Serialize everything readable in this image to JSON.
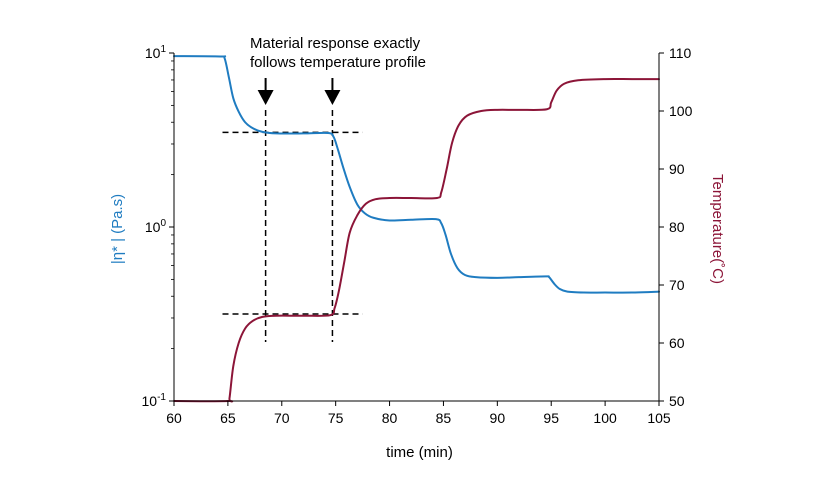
{
  "chart_data": {
    "type": "line",
    "xlabel": "time (min)",
    "xlim": [
      60,
      105
    ],
    "x_ticks": [
      "60",
      "65",
      "70",
      "75",
      "80",
      "85",
      "90",
      "95",
      "100",
      "105"
    ],
    "left_axis": {
      "label": "|η* | (Pa.s)",
      "scale": "log",
      "ylim": [
        0.1,
        10
      ],
      "ticks": [
        {
          "base": "10",
          "exp": "1",
          "value": 10
        },
        {
          "base": "10",
          "exp": "0",
          "value": 1
        },
        {
          "base": "10",
          "exp": "-1",
          "value": 0.1
        }
      ],
      "color": "#1f7cc1"
    },
    "right_axis": {
      "label": "Temperature(˚C)",
      "scale": "linear",
      "ylim": [
        50,
        110
      ],
      "ticks": [
        "50",
        "60",
        "70",
        "80",
        "90",
        "100",
        "110"
      ],
      "color": "#8c1538"
    },
    "annotation": {
      "lines": [
        "Material response exactly",
        "follows temperature profile"
      ],
      "arrow_x": [
        68.5,
        74.7
      ]
    },
    "guides": {
      "vertical_x": [
        68.5,
        74.7
      ],
      "x_range": [
        64.5,
        77.5
      ],
      "viscosity_level": 3.5,
      "temperature_level": 65
    },
    "series": [
      {
        "axis": "left",
        "color": "#1f7cc1",
        "points": [
          [
            60,
            9.6
          ],
          [
            64.3,
            9.55
          ],
          [
            64.7,
            9.3
          ],
          [
            65.1,
            7.2
          ],
          [
            65.5,
            5.5
          ],
          [
            66,
            4.6
          ],
          [
            66.6,
            4.0
          ],
          [
            67.3,
            3.7
          ],
          [
            68.2,
            3.52
          ],
          [
            69.5,
            3.45
          ],
          [
            72,
            3.45
          ],
          [
            74.3,
            3.47
          ],
          [
            74.8,
            3.3
          ],
          [
            75.2,
            2.8
          ],
          [
            75.7,
            2.2
          ],
          [
            76.3,
            1.7
          ],
          [
            77,
            1.35
          ],
          [
            77.7,
            1.2
          ],
          [
            78.5,
            1.13
          ],
          [
            80,
            1.09
          ],
          [
            82,
            1.1
          ],
          [
            84.3,
            1.11
          ],
          [
            84.8,
            1.05
          ],
          [
            85.2,
            0.9
          ],
          [
            85.7,
            0.7
          ],
          [
            86.3,
            0.58
          ],
          [
            87,
            0.53
          ],
          [
            88,
            0.515
          ],
          [
            90,
            0.51
          ],
          [
            92,
            0.515
          ],
          [
            94.5,
            0.52
          ],
          [
            94.8,
            0.515
          ],
          [
            95.3,
            0.47
          ],
          [
            95.8,
            0.44
          ],
          [
            96.5,
            0.425
          ],
          [
            98,
            0.42
          ],
          [
            100,
            0.42
          ],
          [
            102.5,
            0.42
          ],
          [
            105,
            0.425
          ]
        ]
      },
      {
        "axis": "right",
        "color": "#8c1538",
        "points": [
          [
            60,
            50
          ],
          [
            65,
            50
          ],
          [
            65.15,
            50.5
          ],
          [
            65.5,
            56
          ],
          [
            66,
            60
          ],
          [
            66.6,
            62.5
          ],
          [
            67.3,
            63.8
          ],
          [
            68.2,
            64.5
          ],
          [
            69.5,
            64.7
          ],
          [
            72,
            64.7
          ],
          [
            74.5,
            64.8
          ],
          [
            74.9,
            66
          ],
          [
            75.3,
            69
          ],
          [
            75.8,
            74
          ],
          [
            76.3,
            79
          ],
          [
            77,
            82
          ],
          [
            77.8,
            84
          ],
          [
            78.7,
            84.8
          ],
          [
            80,
            85
          ],
          [
            82,
            85
          ],
          [
            84.4,
            85
          ],
          [
            84.8,
            86
          ],
          [
            85.3,
            90
          ],
          [
            85.8,
            94.5
          ],
          [
            86.4,
            97.5
          ],
          [
            87.2,
            99.2
          ],
          [
            88.5,
            100
          ],
          [
            90,
            100.2
          ],
          [
            92,
            100.2
          ],
          [
            94.6,
            100.3
          ],
          [
            95,
            101.5
          ],
          [
            95.5,
            103.5
          ],
          [
            96.2,
            104.7
          ],
          [
            97.5,
            105.3
          ],
          [
            100,
            105.5
          ],
          [
            102.5,
            105.5
          ],
          [
            105,
            105.5
          ]
        ]
      }
    ]
  }
}
